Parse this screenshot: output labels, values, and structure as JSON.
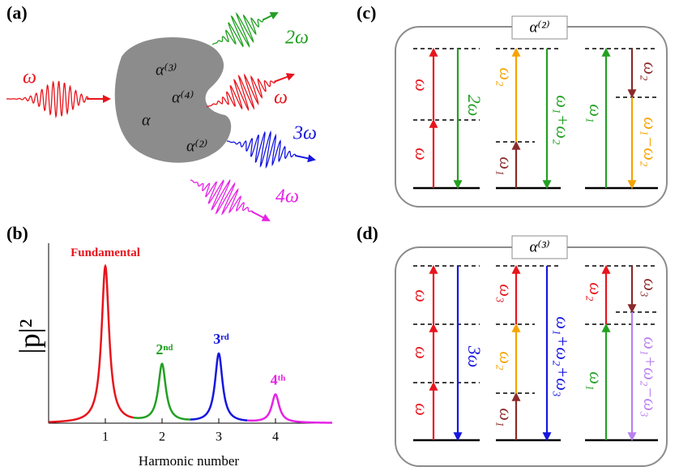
{
  "panel_a": {
    "label": "(a)",
    "input": "ω",
    "medium": [
      "α⁽³⁾",
      "α⁽⁴⁾",
      "α",
      "α⁽²⁾"
    ],
    "outputs": [
      "2ω",
      "ω",
      "3ω",
      "4ω"
    ]
  },
  "chart_data": {
    "type": "line",
    "panel_label": "(b)",
    "xlabel": "Harmonic number",
    "ylabel": "|p|²",
    "xlim": [
      0,
      5
    ],
    "ylim": [
      0,
      1.15
    ],
    "xticks": [
      1,
      2,
      3,
      4
    ],
    "peaks": {
      "x": [
        1,
        2,
        3,
        4
      ],
      "values": [
        1,
        0.37,
        0.44,
        0.18
      ],
      "labels": [
        "Fundamental",
        "2ⁿᵈ",
        "3ʳᵈ",
        "4ᵗʰ"
      ],
      "colors": [
        "#e8141c",
        "#22a022",
        "#1616e0",
        "#e622e6"
      ]
    }
  },
  "panel_c": {
    "label": "(c)",
    "order": "α⁽²⁾",
    "labels": [
      "ω",
      "ω",
      "2ω",
      "ω₂",
      "ω₁",
      "ω₁+ω₂",
      "ω₁",
      "ω₂",
      "ω₁−ω₂"
    ]
  },
  "panel_d": {
    "label": "(d)",
    "order": "α⁽³⁾",
    "labels": [
      "ω",
      "ω",
      "ω",
      "3ω",
      "ω₃",
      "ω₂",
      "ω₁",
      "ω₁+ω₂+ω₃",
      "ω₁",
      "ω₂",
      "ω₃",
      "ω₁+ω₂−ω₃"
    ]
  }
}
